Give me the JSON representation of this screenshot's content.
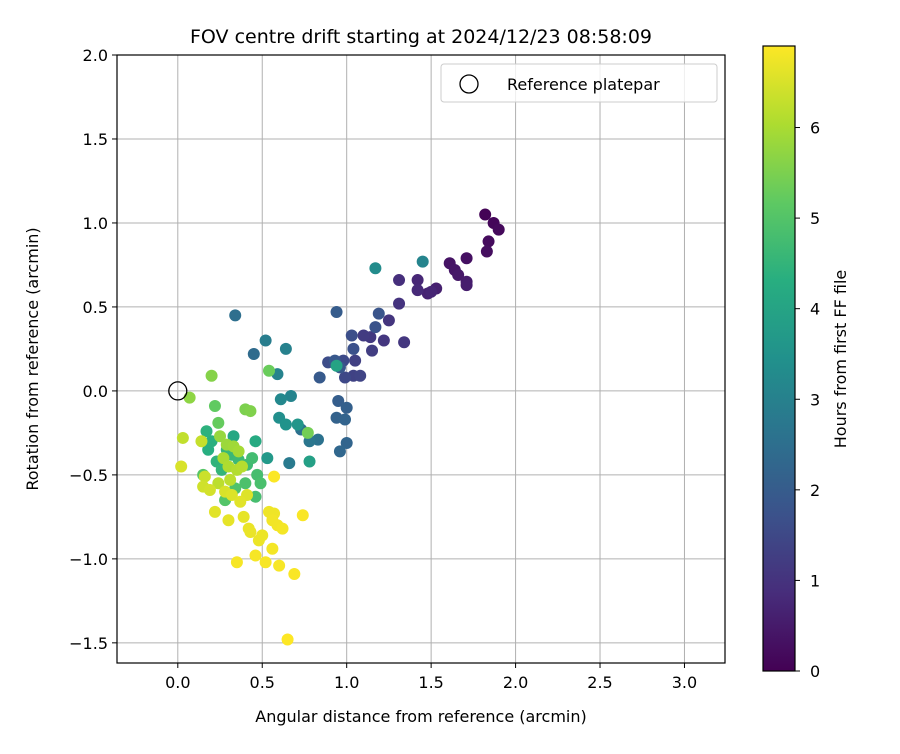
{
  "chart_data": {
    "type": "scatter",
    "title": "FOV centre drift starting at 2024/12/23 08:58:09",
    "xlabel": "Angular distance from reference (arcmin)",
    "ylabel": "Rotation from reference (arcmin)",
    "xlim": [
      -0.36,
      3.24
    ],
    "ylim": [
      -1.62,
      2.0
    ],
    "xticks": [
      0.0,
      0.5,
      1.0,
      1.5,
      2.0,
      2.5,
      3.0
    ],
    "xtick_labels": [
      "0.0",
      "0.5",
      "1.0",
      "1.5",
      "2.0",
      "2.5",
      "3.0"
    ],
    "yticks": [
      -1.5,
      -1.0,
      -0.5,
      0.0,
      0.5,
      1.0,
      1.5,
      2.0
    ],
    "ytick_labels": [
      "−1.5",
      "−1.0",
      "−0.5",
      "0.0",
      "0.5",
      "1.0",
      "1.5",
      "2.0"
    ],
    "grid": true,
    "legend": {
      "placement": "top-right",
      "entries": [
        "Reference platepar"
      ]
    },
    "reference_point": {
      "x": 0.0,
      "y": 0.0
    },
    "colorbar": {
      "label": "Hours from first FF file",
      "colormap": "viridis",
      "range": [
        0,
        6.9
      ],
      "ticks": [
        0,
        1,
        2,
        3,
        4,
        5,
        6
      ],
      "tick_labels": [
        "0",
        "1",
        "2",
        "3",
        "4",
        "5",
        "6"
      ]
    },
    "points": [
      {
        "x": 1.82,
        "y": 1.05,
        "h": 0.05
      },
      {
        "x": 1.87,
        "y": 1.0,
        "h": 0.1
      },
      {
        "x": 1.9,
        "y": 0.96,
        "h": 0.15
      },
      {
        "x": 1.84,
        "y": 0.89,
        "h": 0.2
      },
      {
        "x": 1.83,
        "y": 0.83,
        "h": 0.25
      },
      {
        "x": 1.71,
        "y": 0.79,
        "h": 0.3
      },
      {
        "x": 1.61,
        "y": 0.76,
        "h": 0.35
      },
      {
        "x": 1.64,
        "y": 0.72,
        "h": 0.4
      },
      {
        "x": 1.66,
        "y": 0.69,
        "h": 0.45
      },
      {
        "x": 1.71,
        "y": 0.65,
        "h": 0.5
      },
      {
        "x": 1.71,
        "y": 0.63,
        "h": 0.55
      },
      {
        "x": 1.53,
        "y": 0.61,
        "h": 0.6
      },
      {
        "x": 1.48,
        "y": 0.58,
        "h": 0.65
      },
      {
        "x": 1.5,
        "y": 0.59,
        "h": 0.7
      },
      {
        "x": 1.42,
        "y": 0.66,
        "h": 0.75
      },
      {
        "x": 1.42,
        "y": 0.6,
        "h": 0.8
      },
      {
        "x": 1.31,
        "y": 0.66,
        "h": 0.9
      },
      {
        "x": 1.31,
        "y": 0.52,
        "h": 1.0
      },
      {
        "x": 1.25,
        "y": 0.42,
        "h": 1.05
      },
      {
        "x": 1.22,
        "y": 0.3,
        "h": 1.1
      },
      {
        "x": 1.34,
        "y": 0.29,
        "h": 1.1
      },
      {
        "x": 1.14,
        "y": 0.32,
        "h": 1.15
      },
      {
        "x": 1.1,
        "y": 0.33,
        "h": 1.2
      },
      {
        "x": 1.15,
        "y": 0.24,
        "h": 1.25
      },
      {
        "x": 1.05,
        "y": 0.18,
        "h": 1.3
      },
      {
        "x": 1.04,
        "y": 0.09,
        "h": 1.35
      },
      {
        "x": 1.08,
        "y": 0.09,
        "h": 1.4
      },
      {
        "x": 0.99,
        "y": 0.08,
        "h": 1.5
      },
      {
        "x": 0.98,
        "y": 0.18,
        "h": 1.55
      },
      {
        "x": 0.89,
        "y": 0.17,
        "h": 1.6
      },
      {
        "x": 1.03,
        "y": 0.33,
        "h": 1.65
      },
      {
        "x": 1.04,
        "y": 0.25,
        "h": 1.7
      },
      {
        "x": 1.17,
        "y": 0.38,
        "h": 1.75
      },
      {
        "x": 1.19,
        "y": 0.46,
        "h": 1.8
      },
      {
        "x": 0.96,
        "y": 0.14,
        "h": 1.85
      },
      {
        "x": 0.93,
        "y": 0.18,
        "h": 1.9
      },
      {
        "x": 0.84,
        "y": 0.08,
        "h": 1.95
      },
      {
        "x": 0.94,
        "y": 0.47,
        "h": 2.0
      },
      {
        "x": 0.95,
        "y": -0.06,
        "h": 2.05
      },
      {
        "x": 1.0,
        "y": -0.1,
        "h": 2.1
      },
      {
        "x": 0.94,
        "y": -0.16,
        "h": 2.15
      },
      {
        "x": 0.99,
        "y": -0.17,
        "h": 2.2
      },
      {
        "x": 1.0,
        "y": -0.31,
        "h": 2.25
      },
      {
        "x": 0.96,
        "y": -0.36,
        "h": 2.3
      },
      {
        "x": 0.45,
        "y": 0.22,
        "h": 2.4
      },
      {
        "x": 0.34,
        "y": 0.45,
        "h": 2.5
      },
      {
        "x": 0.73,
        "y": -0.23,
        "h": 2.55
      },
      {
        "x": 0.83,
        "y": -0.29,
        "h": 2.6
      },
      {
        "x": 0.78,
        "y": -0.3,
        "h": 2.7
      },
      {
        "x": 0.66,
        "y": -0.43,
        "h": 2.8
      },
      {
        "x": 0.52,
        "y": 0.3,
        "h": 2.9
      },
      {
        "x": 0.64,
        "y": 0.25,
        "h": 3.0
      },
      {
        "x": 0.59,
        "y": 0.1,
        "h": 3.05
      },
      {
        "x": 0.67,
        "y": -0.03,
        "h": 3.1
      },
      {
        "x": 0.61,
        "y": -0.05,
        "h": 3.2
      },
      {
        "x": 1.17,
        "y": 0.73,
        "h": 3.3
      },
      {
        "x": 1.45,
        "y": 0.77,
        "h": 3.1
      },
      {
        "x": 0.6,
        "y": -0.16,
        "h": 3.4
      },
      {
        "x": 0.64,
        "y": -0.2,
        "h": 3.5
      },
      {
        "x": 0.71,
        "y": -0.2,
        "h": 3.6
      },
      {
        "x": 0.53,
        "y": -0.4,
        "h": 3.7
      },
      {
        "x": 0.78,
        "y": -0.42,
        "h": 3.9
      },
      {
        "x": 0.94,
        "y": 0.15,
        "h": 4.0
      },
      {
        "x": 0.33,
        "y": -0.27,
        "h": 4.1
      },
      {
        "x": 0.46,
        "y": -0.3,
        "h": 4.2
      },
      {
        "x": 0.18,
        "y": -0.35,
        "h": 4.3
      },
      {
        "x": 0.2,
        "y": -0.3,
        "h": 4.35
      },
      {
        "x": 0.17,
        "y": -0.24,
        "h": 4.4
      },
      {
        "x": 0.23,
        "y": -0.42,
        "h": 4.45
      },
      {
        "x": 0.26,
        "y": -0.47,
        "h": 4.5
      },
      {
        "x": 0.29,
        "y": -0.35,
        "h": 4.55
      },
      {
        "x": 0.32,
        "y": -0.38,
        "h": 4.6
      },
      {
        "x": 0.36,
        "y": -0.41,
        "h": 4.65
      },
      {
        "x": 0.41,
        "y": -0.44,
        "h": 4.7
      },
      {
        "x": 0.44,
        "y": -0.4,
        "h": 4.75
      },
      {
        "x": 0.47,
        "y": -0.5,
        "h": 4.8
      },
      {
        "x": 0.49,
        "y": -0.55,
        "h": 4.85
      },
      {
        "x": 0.4,
        "y": -0.55,
        "h": 4.9
      },
      {
        "x": 0.34,
        "y": -0.58,
        "h": 4.95
      },
      {
        "x": 0.28,
        "y": -0.65,
        "h": 5.0
      },
      {
        "x": 0.46,
        "y": -0.63,
        "h": 4.8
      },
      {
        "x": 0.15,
        "y": -0.5,
        "h": 5.05
      },
      {
        "x": 0.22,
        "y": -0.09,
        "h": 5.2
      },
      {
        "x": 0.24,
        "y": -0.19,
        "h": 5.25
      },
      {
        "x": 0.54,
        "y": 0.12,
        "h": 5.3
      },
      {
        "x": 0.77,
        "y": -0.25,
        "h": 5.4
      },
      {
        "x": 0.4,
        "y": -0.11,
        "h": 5.5
      },
      {
        "x": 0.43,
        "y": -0.12,
        "h": 5.55
      },
      {
        "x": 0.2,
        "y": 0.09,
        "h": 5.6
      },
      {
        "x": 0.07,
        "y": -0.04,
        "h": 5.7
      },
      {
        "x": 0.25,
        "y": -0.27,
        "h": 5.8
      },
      {
        "x": 0.29,
        "y": -0.32,
        "h": 5.85
      },
      {
        "x": 0.33,
        "y": -0.33,
        "h": 5.9
      },
      {
        "x": 0.36,
        "y": -0.36,
        "h": 5.95
      },
      {
        "x": 0.27,
        "y": -0.4,
        "h": 6.0
      },
      {
        "x": 0.3,
        "y": -0.45,
        "h": 6.05
      },
      {
        "x": 0.35,
        "y": -0.47,
        "h": 6.1
      },
      {
        "x": 0.38,
        "y": -0.45,
        "h": 6.15
      },
      {
        "x": 0.24,
        "y": -0.55,
        "h": 6.2
      },
      {
        "x": 0.31,
        "y": -0.53,
        "h": 6.2
      },
      {
        "x": 0.03,
        "y": -0.28,
        "h": 6.25
      },
      {
        "x": 0.14,
        "y": -0.3,
        "h": 6.3
      },
      {
        "x": 0.16,
        "y": -0.51,
        "h": 6.35
      },
      {
        "x": 0.15,
        "y": -0.57,
        "h": 6.4
      },
      {
        "x": 0.19,
        "y": -0.59,
        "h": 6.45
      },
      {
        "x": 0.02,
        "y": -0.45,
        "h": 6.5
      },
      {
        "x": 0.28,
        "y": -0.6,
        "h": 6.5
      },
      {
        "x": 0.32,
        "y": -0.62,
        "h": 6.55
      },
      {
        "x": 0.41,
        "y": -0.62,
        "h": 6.55
      },
      {
        "x": 0.37,
        "y": -0.66,
        "h": 6.6
      },
      {
        "x": 0.22,
        "y": -0.72,
        "h": 6.6
      },
      {
        "x": 0.3,
        "y": -0.77,
        "h": 6.65
      },
      {
        "x": 0.39,
        "y": -0.75,
        "h": 6.65
      },
      {
        "x": 0.42,
        "y": -0.82,
        "h": 6.7
      },
      {
        "x": 0.43,
        "y": -0.84,
        "h": 6.7
      },
      {
        "x": 0.48,
        "y": -0.89,
        "h": 6.72
      },
      {
        "x": 0.5,
        "y": -0.86,
        "h": 6.72
      },
      {
        "x": 0.54,
        "y": -0.72,
        "h": 6.75
      },
      {
        "x": 0.57,
        "y": -0.73,
        "h": 6.75
      },
      {
        "x": 0.56,
        "y": -0.77,
        "h": 6.78
      },
      {
        "x": 0.59,
        "y": -0.8,
        "h": 6.78
      },
      {
        "x": 0.62,
        "y": -0.82,
        "h": 6.8
      },
      {
        "x": 0.56,
        "y": -0.94,
        "h": 6.8
      },
      {
        "x": 0.46,
        "y": -0.98,
        "h": 6.82
      },
      {
        "x": 0.35,
        "y": -1.02,
        "h": 6.82
      },
      {
        "x": 0.52,
        "y": -1.02,
        "h": 6.84
      },
      {
        "x": 0.6,
        "y": -1.04,
        "h": 6.84
      },
      {
        "x": 0.69,
        "y": -1.09,
        "h": 6.86
      },
      {
        "x": 0.74,
        "y": -0.74,
        "h": 6.86
      },
      {
        "x": 0.57,
        "y": -0.51,
        "h": 6.88
      },
      {
        "x": 0.65,
        "y": -1.48,
        "h": 6.9
      }
    ]
  }
}
